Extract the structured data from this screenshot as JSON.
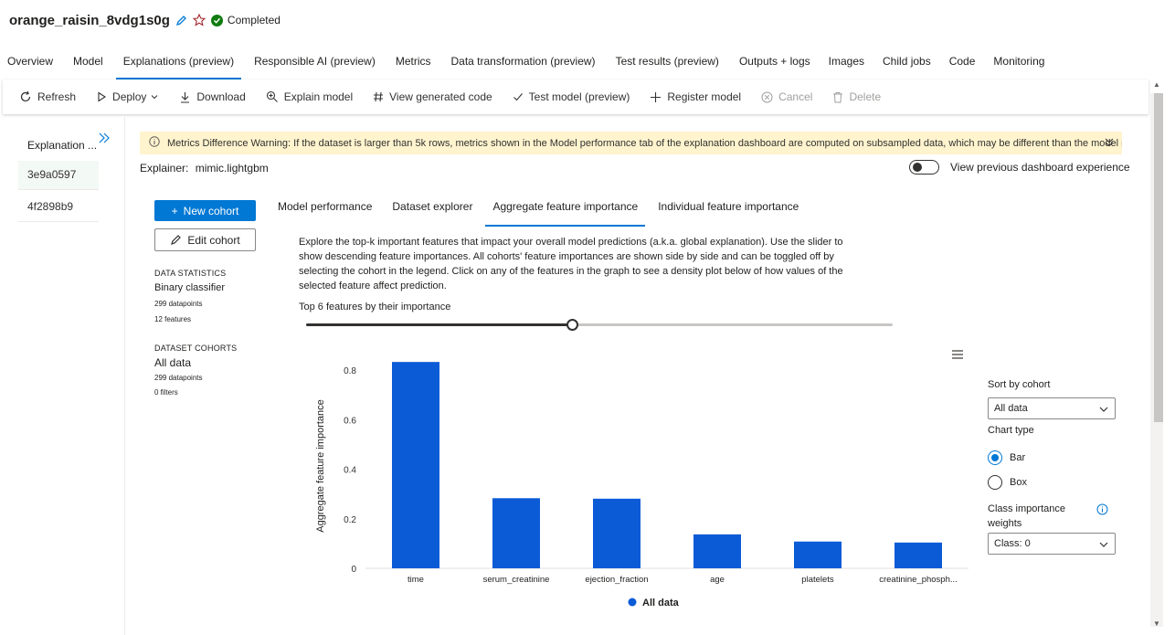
{
  "run": {
    "title": "orange_raisin_8vdg1s0g",
    "status": "Completed"
  },
  "tabs": [
    {
      "label": "Overview"
    },
    {
      "label": "Model"
    },
    {
      "label": "Explanations (preview)",
      "active": true
    },
    {
      "label": "Responsible AI (preview)"
    },
    {
      "label": "Metrics"
    },
    {
      "label": "Data transformation (preview)"
    },
    {
      "label": "Test results (preview)"
    },
    {
      "label": "Outputs + logs"
    },
    {
      "label": "Images"
    },
    {
      "label": "Child jobs"
    },
    {
      "label": "Code"
    },
    {
      "label": "Monitoring"
    }
  ],
  "toolbar": {
    "refresh": "Refresh",
    "deploy": "Deploy",
    "download": "Download",
    "explain": "Explain model",
    "view_code": "View generated code",
    "test_model": "Test model (preview)",
    "register": "Register model",
    "cancel": "Cancel",
    "delete": "Delete"
  },
  "left_panel": {
    "header": "Explanation ...",
    "items": [
      "3e9a0597",
      "4f2898b9"
    ]
  },
  "warning": {
    "text": "Metrics Difference Warning: If the dataset is larger than 5k rows, metrics shown in the Model performance tab of the explanation dashboard are computed on subsampled data, which may be different than the model metrics on..."
  },
  "explainer": {
    "label": "Explainer:",
    "value": "mimic.lightgbm"
  },
  "toggle": {
    "label": "View previous dashboard experience"
  },
  "cohort_buttons": {
    "new": "New cohort",
    "edit": "Edit cohort"
  },
  "data_statistics": {
    "heading": "DATA STATISTICS",
    "classifier": "Binary classifier",
    "datapoints": "299 datapoints",
    "features": "12 features"
  },
  "dataset_cohorts": {
    "heading": "DATASET COHORTS",
    "name": "All data",
    "datapoints": "299 datapoints",
    "filters": "0 filters"
  },
  "sub_tabs": [
    {
      "label": "Model performance"
    },
    {
      "label": "Dataset explorer"
    },
    {
      "label": "Aggregate feature importance",
      "active": true
    },
    {
      "label": "Individual feature importance"
    }
  ],
  "description": "Explore the top-k important features that impact your overall model predictions (a.k.a. global explanation). Use the slider to show descending feature importances. All cohorts' feature importances are shown side by side and can be toggled off by selecting the cohort in the legend. Click on any of the features in the graph to see a density plot below of how values of the selected feature affect prediction.",
  "slider": {
    "label": "Top 6 features by their importance",
    "value": 6,
    "max": 12
  },
  "chart_data": {
    "type": "bar",
    "categories": [
      "time",
      "serum_creatinine",
      "ejection_fraction",
      "age",
      "platelets",
      "creatinine_phosph..."
    ],
    "series": [
      {
        "name": "All data",
        "values": [
          0.833,
          0.283,
          0.281,
          0.137,
          0.108,
          0.104
        ]
      }
    ],
    "ylabel": "Aggregate feature importance",
    "xlabel": "",
    "ylim": [
      0,
      0.9
    ],
    "yticks": [
      0,
      0.2,
      0.4,
      0.6,
      0.8
    ],
    "grid": false,
    "legend": "bottom",
    "color": "#0b5bd7"
  },
  "right_panel": {
    "sort_label": "Sort by cohort",
    "sort_value": "All data",
    "chart_type_label": "Chart type",
    "bar_label": "Bar",
    "box_label": "Box",
    "class_label_1": "Class importance",
    "class_label_2": "weights",
    "class_value": "Class: 0"
  },
  "colors": {
    "accent": "#0078d4",
    "success": "#107c10",
    "warning_bg": "#fff4ce"
  }
}
